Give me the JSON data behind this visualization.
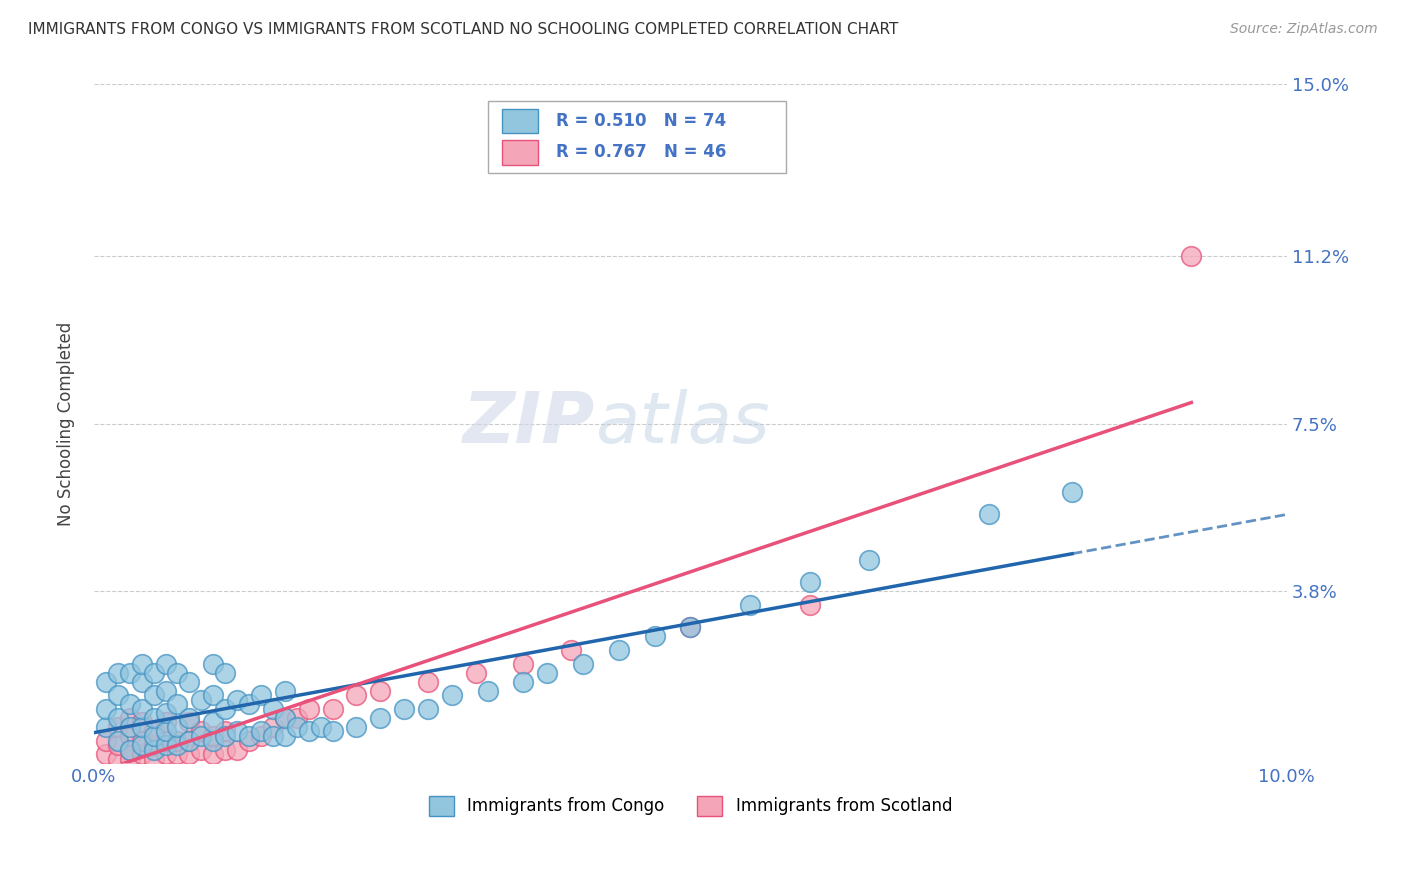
{
  "title": "IMMIGRANTS FROM CONGO VS IMMIGRANTS FROM SCOTLAND NO SCHOOLING COMPLETED CORRELATION CHART",
  "source": "Source: ZipAtlas.com",
  "ylabel": "No Schooling Completed",
  "xlim": [
    0.0,
    0.1
  ],
  "ylim": [
    0.0,
    0.15
  ],
  "xtick_positions": [
    0.0,
    0.02,
    0.04,
    0.06,
    0.08,
    0.1
  ],
  "xticklabels": [
    "0.0%",
    "",
    "",
    "",
    "",
    "10.0%"
  ],
  "ytick_positions": [
    0.0,
    0.038,
    0.075,
    0.112,
    0.15
  ],
  "yticklabels_right": [
    "",
    "3.8%",
    "7.5%",
    "11.2%",
    "15.0%"
  ],
  "legend_r1": "R = 0.510",
  "legend_n1": "N = 74",
  "legend_r2": "R = 0.767",
  "legend_n2": "N = 46",
  "color_congo": "#92c5de",
  "color_scotland": "#f4a6b8",
  "color_edge_congo": "#4393c3",
  "color_edge_scotland": "#e8527a",
  "color_line_congo": "#2166ac",
  "color_line_scotland": "#e8527a",
  "color_tick": "#4472c4",
  "background_color": "#ffffff",
  "congo_x": [
    0.001,
    0.001,
    0.001,
    0.002,
    0.002,
    0.002,
    0.002,
    0.003,
    0.003,
    0.003,
    0.003,
    0.004,
    0.004,
    0.004,
    0.004,
    0.004,
    0.005,
    0.005,
    0.005,
    0.005,
    0.005,
    0.006,
    0.006,
    0.006,
    0.006,
    0.006,
    0.007,
    0.007,
    0.007,
    0.007,
    0.008,
    0.008,
    0.008,
    0.009,
    0.009,
    0.01,
    0.01,
    0.01,
    0.01,
    0.011,
    0.011,
    0.011,
    0.012,
    0.012,
    0.013,
    0.013,
    0.014,
    0.014,
    0.015,
    0.015,
    0.016,
    0.016,
    0.016,
    0.017,
    0.018,
    0.019,
    0.02,
    0.022,
    0.024,
    0.026,
    0.028,
    0.03,
    0.033,
    0.036,
    0.038,
    0.041,
    0.044,
    0.047,
    0.05,
    0.055,
    0.06,
    0.065,
    0.075,
    0.082
  ],
  "congo_y": [
    0.008,
    0.012,
    0.018,
    0.005,
    0.01,
    0.015,
    0.02,
    0.003,
    0.008,
    0.013,
    0.02,
    0.004,
    0.008,
    0.012,
    0.018,
    0.022,
    0.003,
    0.006,
    0.01,
    0.015,
    0.02,
    0.004,
    0.007,
    0.011,
    0.016,
    0.022,
    0.004,
    0.008,
    0.013,
    0.02,
    0.005,
    0.01,
    0.018,
    0.006,
    0.014,
    0.005,
    0.009,
    0.015,
    0.022,
    0.006,
    0.012,
    0.02,
    0.007,
    0.014,
    0.006,
    0.013,
    0.007,
    0.015,
    0.006,
    0.012,
    0.006,
    0.01,
    0.016,
    0.008,
    0.007,
    0.008,
    0.007,
    0.008,
    0.01,
    0.012,
    0.012,
    0.015,
    0.016,
    0.018,
    0.02,
    0.022,
    0.025,
    0.028,
    0.03,
    0.035,
    0.04,
    0.045,
    0.055,
    0.06
  ],
  "scotland_x": [
    0.001,
    0.001,
    0.002,
    0.002,
    0.002,
    0.003,
    0.003,
    0.003,
    0.003,
    0.004,
    0.004,
    0.004,
    0.005,
    0.005,
    0.005,
    0.006,
    0.006,
    0.006,
    0.007,
    0.007,
    0.008,
    0.008,
    0.008,
    0.009,
    0.009,
    0.01,
    0.01,
    0.011,
    0.011,
    0.012,
    0.013,
    0.014,
    0.015,
    0.016,
    0.017,
    0.018,
    0.02,
    0.022,
    0.024,
    0.028,
    0.032,
    0.036,
    0.04,
    0.05,
    0.06,
    0.092
  ],
  "scotland_y": [
    0.002,
    0.005,
    0.001,
    0.004,
    0.008,
    0.001,
    0.003,
    0.006,
    0.01,
    0.002,
    0.005,
    0.009,
    0.001,
    0.004,
    0.007,
    0.002,
    0.005,
    0.009,
    0.002,
    0.005,
    0.002,
    0.005,
    0.009,
    0.003,
    0.007,
    0.002,
    0.006,
    0.003,
    0.007,
    0.003,
    0.005,
    0.006,
    0.008,
    0.01,
    0.01,
    0.012,
    0.012,
    0.015,
    0.016,
    0.018,
    0.02,
    0.022,
    0.025,
    0.03,
    0.035,
    0.112
  ]
}
